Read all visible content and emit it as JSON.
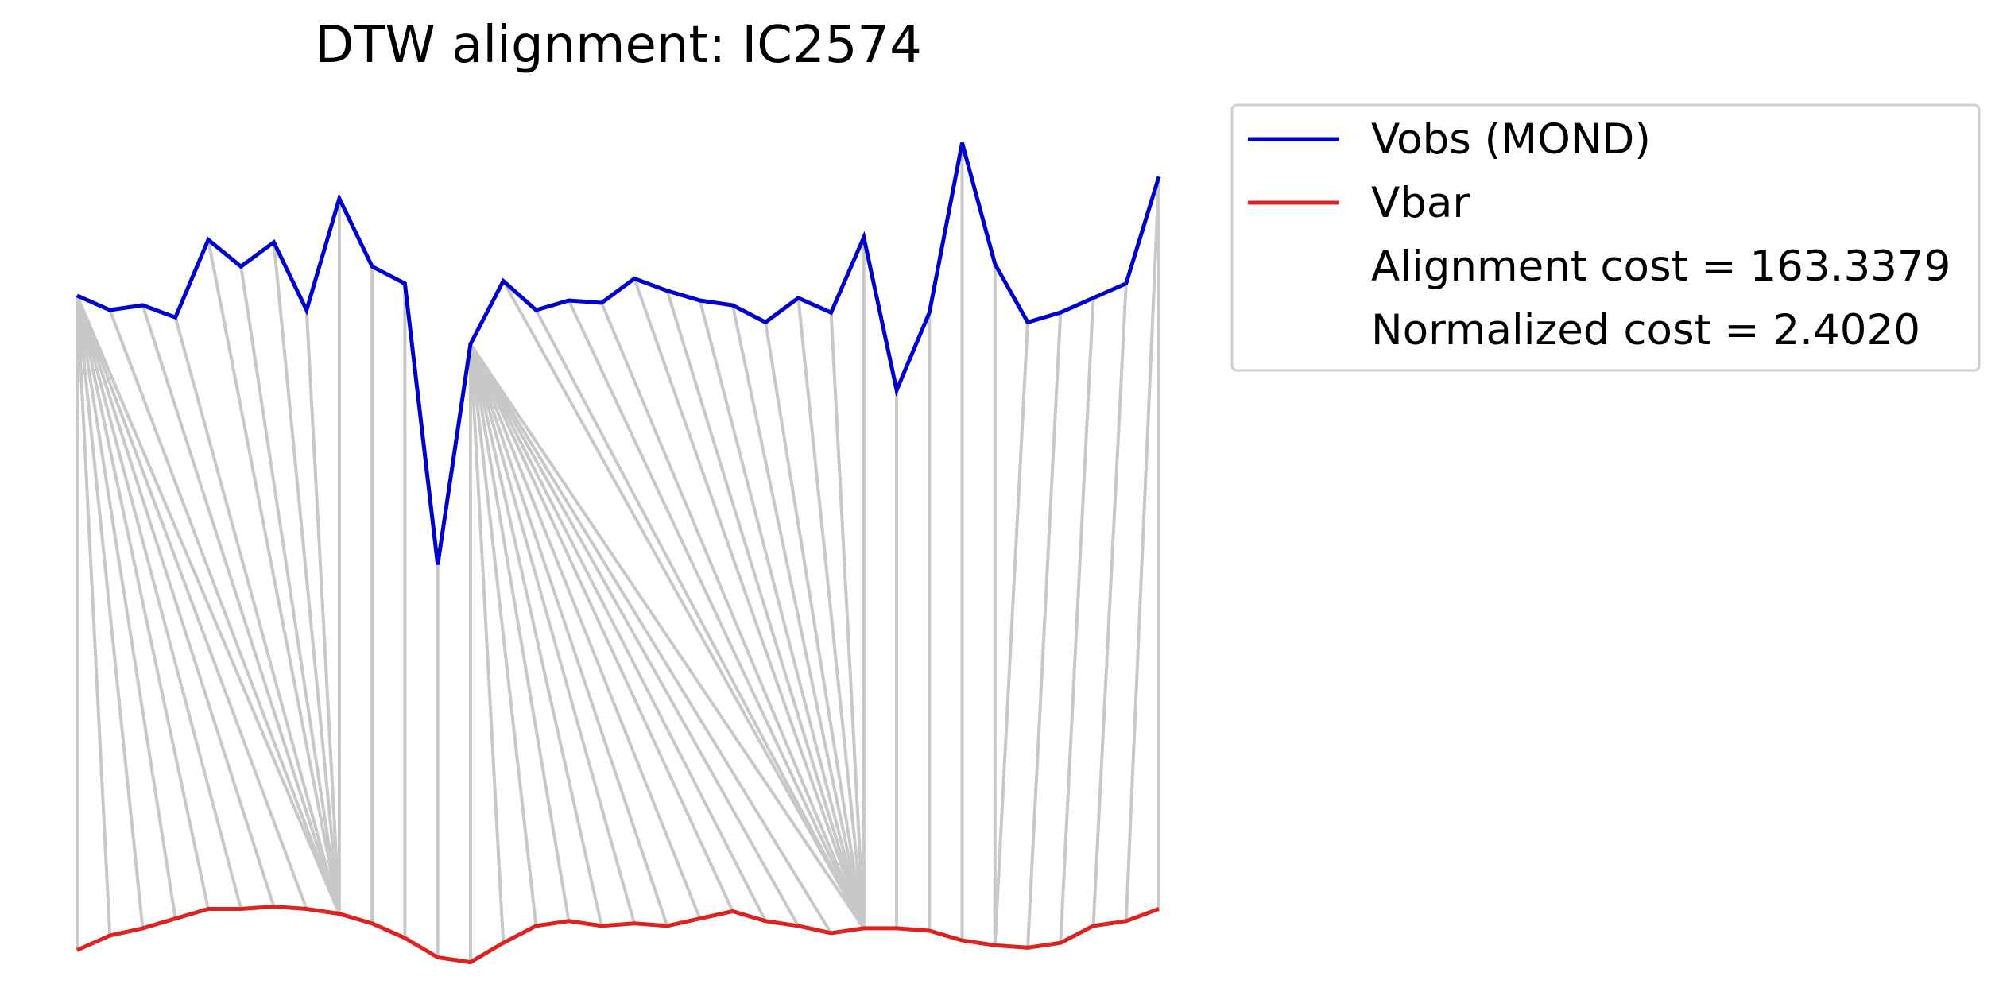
{
  "chart_data": {
    "type": "line",
    "title": "DTW alignment: IC2574",
    "axes_visible": false,
    "grid": false,
    "legend_position": "top-right, outside plot",
    "colors": {
      "vobs": "#0000cc",
      "vbar": "#dd2222",
      "connector": "#c8c8c8",
      "legend_border": "#d0d0d0"
    },
    "series": [
      {
        "name": "Vobs (MOND)",
        "values": [
          80.3,
          79.7,
          79.9,
          79.4,
          82.6,
          81.5,
          82.5,
          79.7,
          84.3,
          81.5,
          80.8,
          69.2,
          78.3,
          80.9,
          79.7,
          80.1,
          80.0,
          81.0,
          80.5,
          80.1,
          79.9,
          79.2,
          80.2,
          79.6,
          82.7,
          76.4,
          79.6,
          86.6,
          81.6,
          79.2,
          79.6,
          80.2,
          80.8,
          85.2
        ]
      },
      {
        "name": "Vbar",
        "values": [
          53.3,
          53.9,
          54.2,
          54.6,
          55.0,
          55.0,
          55.1,
          55.0,
          54.8,
          54.4,
          53.8,
          53.0,
          52.8,
          53.6,
          54.3,
          54.5,
          54.3,
          54.4,
          54.3,
          54.6,
          54.9,
          54.5,
          54.3,
          54.0,
          54.2,
          54.2,
          54.1,
          53.7,
          53.5,
          53.4,
          53.6,
          54.3,
          54.5,
          55.0
        ]
      }
    ],
    "alignment_path": [
      [
        0,
        0
      ],
      [
        0,
        1
      ],
      [
        0,
        2
      ],
      [
        0,
        3
      ],
      [
        0,
        4
      ],
      [
        0,
        5
      ],
      [
        0,
        6
      ],
      [
        0,
        7
      ],
      [
        0,
        8
      ],
      [
        1,
        8
      ],
      [
        2,
        8
      ],
      [
        3,
        8
      ],
      [
        4,
        8
      ],
      [
        5,
        8
      ],
      [
        6,
        8
      ],
      [
        7,
        8
      ],
      [
        8,
        8
      ],
      [
        9,
        9
      ],
      [
        10,
        10
      ],
      [
        11,
        11
      ],
      [
        12,
        12
      ],
      [
        12,
        13
      ],
      [
        12,
        14
      ],
      [
        12,
        15
      ],
      [
        12,
        16
      ],
      [
        12,
        17
      ],
      [
        12,
        18
      ],
      [
        12,
        19
      ],
      [
        12,
        20
      ],
      [
        12,
        21
      ],
      [
        12,
        22
      ],
      [
        12,
        23
      ],
      [
        12,
        24
      ],
      [
        13,
        24
      ],
      [
        14,
        24
      ],
      [
        15,
        24
      ],
      [
        16,
        24
      ],
      [
        17,
        24
      ],
      [
        18,
        24
      ],
      [
        19,
        24
      ],
      [
        20,
        24
      ],
      [
        21,
        24
      ],
      [
        22,
        24
      ],
      [
        23,
        24
      ],
      [
        24,
        24
      ],
      [
        25,
        25
      ],
      [
        26,
        26
      ],
      [
        27,
        27
      ],
      [
        28,
        28
      ],
      [
        29,
        28
      ],
      [
        30,
        29
      ],
      [
        31,
        30
      ],
      [
        32,
        31
      ],
      [
        33,
        32
      ],
      [
        33,
        33
      ]
    ],
    "legend": [
      {
        "label": "Vobs (MOND)",
        "kind": "line",
        "color_key": "vobs"
      },
      {
        "label": "Vbar",
        "kind": "line",
        "color_key": "vbar"
      },
      {
        "label": "Alignment cost = 163.3379",
        "kind": "text"
      },
      {
        "label": "Normalized cost = 2.4020",
        "kind": "text"
      }
    ]
  }
}
